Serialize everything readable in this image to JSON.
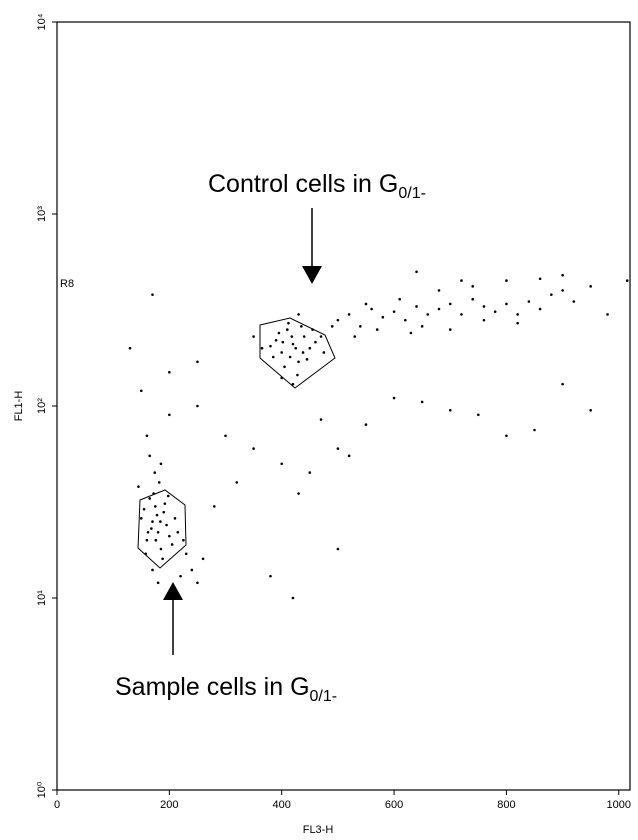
{
  "chart_data": {
    "type": "scatter",
    "x_label": "FL3-H",
    "y_label": "FL1-H",
    "region_label": "R8",
    "annotations": [
      {
        "text": "Control cells in G",
        "subscript": "0/1",
        "suffix": "-"
      },
      {
        "text": "Sample cells in G",
        "subscript": "0/1",
        "suffix": "-"
      }
    ],
    "xlim": [
      0,
      1020
    ],
    "ylim": [
      1,
      10000
    ],
    "y_scale": "log",
    "xticks": [
      0,
      200,
      400,
      600,
      800,
      1000
    ],
    "yticks": [
      {
        "value": 1,
        "label": "10⁰"
      },
      {
        "value": 10,
        "label": "10¹"
      },
      {
        "value": 100,
        "label": "10²"
      },
      {
        "value": 1000,
        "label": "10³"
      },
      {
        "value": 10000,
        "label": "10⁴"
      }
    ],
    "color": "#000000",
    "x": [
      170,
      180,
      190,
      160,
      175,
      185,
      165,
      195,
      150,
      200,
      172,
      182,
      158,
      188,
      178,
      168,
      192,
      210,
      205,
      155,
      176,
      184,
      162,
      198,
      174,
      215,
      230,
      240,
      250,
      225,
      220,
      260,
      180,
      170,
      145,
      165,
      185,
      420,
      400,
      440,
      410,
      430,
      390,
      450,
      415,
      435,
      405,
      425,
      445,
      395,
      460,
      380,
      470,
      412,
      428,
      438,
      402,
      418,
      455,
      385,
      365,
      475,
      350,
      490,
      420,
      430,
      400,
      500,
      520,
      540,
      560,
      580,
      600,
      620,
      640,
      660,
      680,
      700,
      720,
      740,
      760,
      780,
      800,
      820,
      840,
      860,
      880,
      900,
      920,
      950,
      700,
      650,
      760,
      820,
      550,
      610,
      680,
      740,
      800,
      860,
      900,
      980,
      530,
      570,
      630,
      720,
      640,
      130,
      150,
      200,
      250,
      300,
      350,
      400,
      450,
      500,
      550,
      600,
      650,
      700,
      750,
      800,
      850,
      950,
      900,
      320,
      280,
      380,
      420,
      430,
      500,
      520,
      470,
      250,
      200,
      160,
      170,
      1015
    ],
    "y": [
      25,
      22,
      28,
      20,
      30,
      18,
      33,
      24,
      26,
      21,
      35,
      40,
      17,
      16,
      27,
      23,
      31,
      26,
      19,
      29,
      20,
      25,
      22,
      34,
      45,
      22,
      17,
      14,
      12,
      20,
      13,
      16,
      12,
      14,
      38,
      55,
      50,
      210,
      190,
      230,
      250,
      170,
      220,
      200,
      180,
      260,
      160,
      200,
      175,
      240,
      215,
      205,
      230,
      270,
      145,
      190,
      215,
      230,
      250,
      180,
      200,
      190,
      230,
      260,
      130,
      300,
      140,
      280,
      300,
      260,
      320,
      290,
      310,
      280,
      330,
      300,
      320,
      340,
      300,
      360,
      330,
      310,
      340,
      300,
      350,
      320,
      380,
      400,
      350,
      420,
      250,
      260,
      280,
      270,
      340,
      360,
      400,
      420,
      450,
      460,
      480,
      300,
      230,
      250,
      240,
      450,
      500,
      200,
      120,
      150,
      100,
      70,
      60,
      50,
      45,
      60,
      80,
      110,
      105,
      95,
      90,
      70,
      75,
      95,
      130,
      40,
      30,
      13,
      10,
      35,
      18,
      55,
      85,
      170,
      90,
      70,
      380,
      450
    ]
  }
}
